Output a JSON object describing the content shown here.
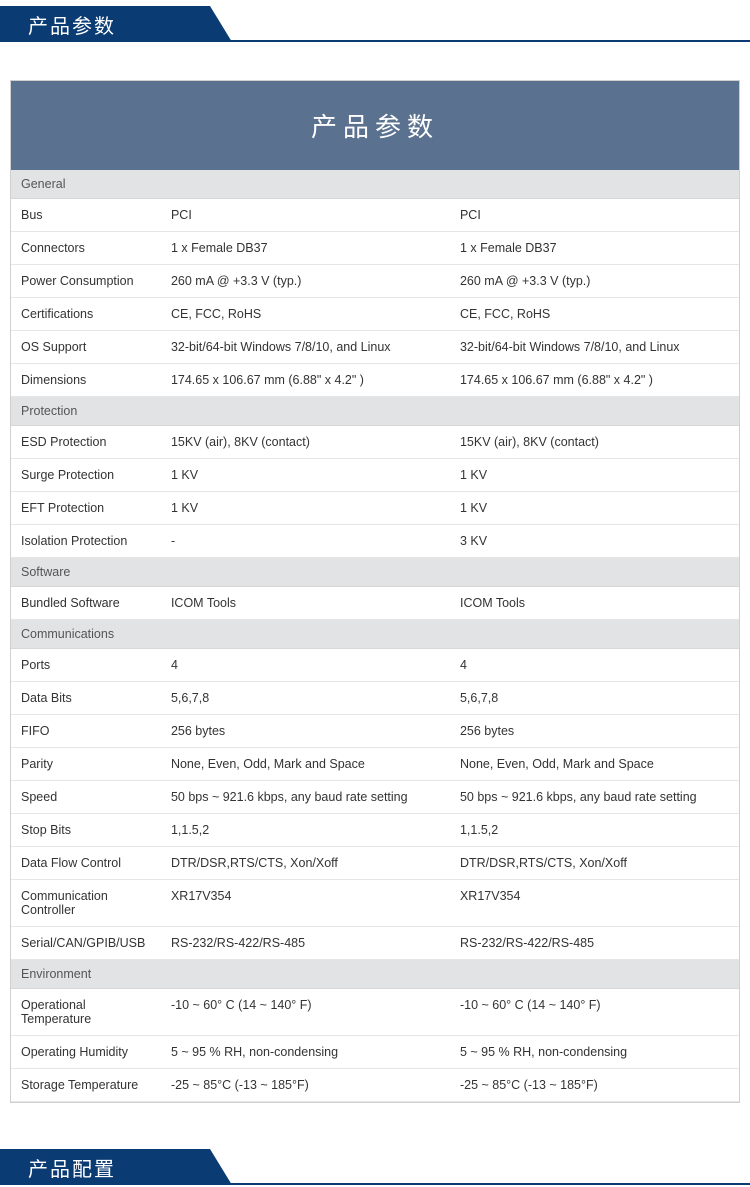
{
  "topBanner": "产品参数",
  "cardTitle": "产品参数",
  "bottomBanner": "产品配置",
  "colors": {
    "bannerBg": "#0a3b73",
    "cardHeaderBg": "#5a718f",
    "sectionRowBg": "#e1e3e5",
    "rowBorder": "#e6e6e6"
  },
  "sections": [
    {
      "title": "General",
      "rows": [
        {
          "label": "Bus",
          "v1": "PCI",
          "v2": "PCI"
        },
        {
          "label": "Connectors",
          "v1": "1 x Female DB37",
          "v2": "1 x Female DB37"
        },
        {
          "label": "Power Consumption",
          "v1": "260 mA @ +3.3 V (typ.)",
          "v2": "260 mA @ +3.3 V (typ.)"
        },
        {
          "label": "Certifications",
          "v1": "CE, FCC, RoHS",
          "v2": "CE, FCC, RoHS"
        },
        {
          "label": "OS Support",
          "v1": "32-bit/64-bit Windows 7/8/10, and Linux",
          "v2": "32-bit/64-bit Windows 7/8/10, and Linux"
        },
        {
          "label": "Dimensions",
          "v1": "174.65 x 106.67 mm (6.88\" x 4.2\" )",
          "v2": "174.65 x 106.67 mm (6.88\" x 4.2\" )"
        }
      ]
    },
    {
      "title": "Protection",
      "rows": [
        {
          "label": "ESD Protection",
          "v1": "15KV (air), 8KV (contact)",
          "v2": "15KV (air), 8KV (contact)"
        },
        {
          "label": "Surge Protection",
          "v1": "1 KV",
          "v2": "1 KV"
        },
        {
          "label": "EFT Protection",
          "v1": "1 KV",
          "v2": "1 KV"
        },
        {
          "label": "Isolation Protection",
          "v1": "-",
          "v2": "3 KV"
        }
      ]
    },
    {
      "title": "Software",
      "rows": [
        {
          "label": "Bundled Software",
          "v1": "ICOM Tools",
          "v2": "ICOM Tools"
        }
      ]
    },
    {
      "title": "Communications",
      "rows": [
        {
          "label": "Ports",
          "v1": "4",
          "v2": "4"
        },
        {
          "label": "Data Bits",
          "v1": "5,6,7,8",
          "v2": "5,6,7,8"
        },
        {
          "label": "FIFO",
          "v1": "256 bytes",
          "v2": "256 bytes"
        },
        {
          "label": "Parity",
          "v1": "None, Even, Odd, Mark and Space",
          "v2": "None, Even, Odd, Mark and Space"
        },
        {
          "label": "Speed",
          "v1": "50 bps ~ 921.6 kbps, any baud rate setting",
          "v2": "50 bps ~ 921.6 kbps, any baud rate setting"
        },
        {
          "label": "Stop Bits",
          "v1": "1,1.5,2",
          "v2": "1,1.5,2"
        },
        {
          "label": "Data Flow Control",
          "v1": "DTR/DSR,RTS/CTS, Xon/Xoff",
          "v2": "DTR/DSR,RTS/CTS, Xon/Xoff"
        },
        {
          "label": "Communication Controller",
          "v1": "XR17V354",
          "v2": "XR17V354"
        },
        {
          "label": "Serial/CAN/GPIB/USB",
          "v1": "RS-232/RS-422/RS-485",
          "v2": "RS-232/RS-422/RS-485"
        }
      ]
    },
    {
      "title": "Environment",
      "rows": [
        {
          "label": "Operational Temperature",
          "v1": "-10 ~ 60° C (14 ~ 140° F)",
          "v2": "-10 ~ 60° C (14 ~ 140° F)"
        },
        {
          "label": "Operating Humidity",
          "v1": "5 ~ 95 % RH, non-condensing",
          "v2": "5 ~ 95 % RH, non-condensing"
        },
        {
          "label": "Storage Temperature",
          "v1": "-25 ~ 85°C (-13 ~ 185°F)",
          "v2": "-25 ~ 85°C (-13 ~ 185°F)"
        }
      ]
    }
  ]
}
